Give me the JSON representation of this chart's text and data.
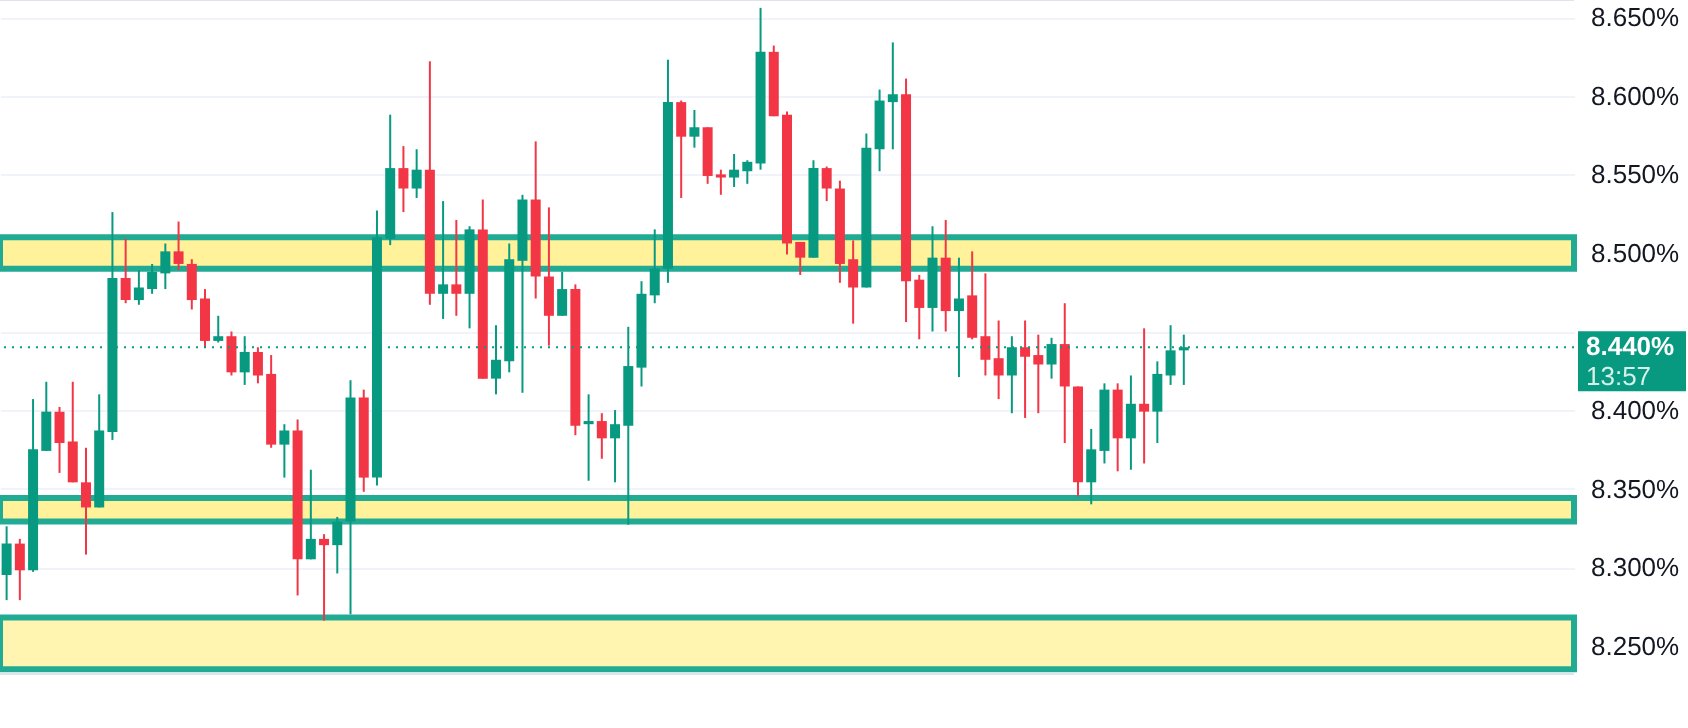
{
  "chart_data": {
    "type": "candlestick",
    "categories": [
      null,
      null,
      null,
      null,
      null,
      null,
      null,
      null,
      null,
      null,
      null,
      null,
      null,
      null,
      null,
      null,
      null,
      null,
      null,
      null,
      null,
      null,
      null,
      null,
      null,
      null,
      null,
      null,
      null,
      null,
      null,
      null,
      null,
      null,
      null,
      null,
      null,
      null,
      null,
      null,
      null,
      null,
      null,
      null,
      null,
      null,
      null,
      null,
      null,
      null,
      null,
      null,
      null,
      null,
      null,
      null,
      null,
      null,
      null,
      null,
      null,
      null,
      null,
      null,
      null,
      null,
      null,
      null,
      null,
      null,
      null,
      null,
      null,
      null,
      null,
      null,
      null,
      null,
      null,
      null,
      null,
      null,
      null,
      null,
      null,
      null,
      null,
      null,
      null,
      null,
      null,
      null,
      null,
      null,
      null,
      null,
      null,
      null,
      null,
      null,
      null,
      null,
      null,
      null,
      null,
      null,
      null,
      null,
      null,
      null,
      null,
      null,
      null,
      null,
      null,
      null,
      null,
      null,
      null
    ],
    "ohlc": [
      [
        8.295,
        8.326,
        8.279,
        8.315
      ],
      [
        8.315,
        8.318,
        8.279,
        8.298
      ],
      [
        8.298,
        8.407,
        8.297,
        8.375
      ],
      [
        8.374,
        8.418,
        8.374,
        8.399
      ],
      [
        8.399,
        8.402,
        8.36,
        8.379
      ],
      [
        8.38,
        8.418,
        8.354,
        8.354
      ],
      [
        8.354,
        8.376,
        8.308,
        8.338
      ],
      [
        8.338,
        8.41,
        8.338,
        8.387
      ],
      [
        8.386,
        8.526,
        8.381,
        8.484
      ],
      [
        8.484,
        8.509,
        8.468,
        8.47
      ],
      [
        8.47,
        8.489,
        8.467,
        8.478
      ],
      [
        8.477,
        8.493,
        8.474,
        8.488
      ],
      [
        8.487,
        8.506,
        8.477,
        8.501
      ],
      [
        8.501,
        8.52,
        8.489,
        8.493
      ],
      [
        8.493,
        8.496,
        8.464,
        8.47
      ],
      [
        8.471,
        8.477,
        8.44,
        8.444
      ],
      [
        8.444,
        8.46,
        8.443,
        8.447
      ],
      [
        8.447,
        8.45,
        8.422,
        8.424
      ],
      [
        8.424,
        8.447,
        8.416,
        8.437
      ],
      [
        8.437,
        8.44,
        8.417,
        8.422
      ],
      [
        8.423,
        8.435,
        8.376,
        8.378
      ],
      [
        8.378,
        8.391,
        8.357,
        8.387
      ],
      [
        8.387,
        8.394,
        8.282,
        8.305
      ],
      [
        8.305,
        8.362,
        8.305,
        8.318
      ],
      [
        8.318,
        8.321,
        8.266,
        8.314
      ],
      [
        8.314,
        8.332,
        8.296,
        8.329
      ],
      [
        8.329,
        8.419,
        8.27,
        8.408
      ],
      [
        8.408,
        8.413,
        8.348,
        8.357
      ],
      [
        8.357,
        8.527,
        8.352,
        8.51
      ],
      [
        8.509,
        8.588,
        8.505,
        8.554
      ],
      [
        8.554,
        8.568,
        8.526,
        8.541
      ],
      [
        8.541,
        8.566,
        8.535,
        8.553
      ],
      [
        8.553,
        8.622,
        8.467,
        8.474
      ],
      [
        8.474,
        8.533,
        8.458,
        8.48
      ],
      [
        8.48,
        8.521,
        8.46,
        8.474
      ],
      [
        8.474,
        8.517,
        8.452,
        8.515
      ],
      [
        8.515,
        8.534,
        8.42,
        8.42
      ],
      [
        8.42,
        8.454,
        8.41,
        8.432
      ],
      [
        8.431,
        8.506,
        8.424,
        8.496
      ],
      [
        8.495,
        8.537,
        8.411,
        8.534
      ],
      [
        8.534,
        8.571,
        8.471,
        8.485
      ],
      [
        8.485,
        8.529,
        8.441,
        8.46
      ],
      [
        8.46,
        8.488,
        8.46,
        8.477
      ],
      [
        8.477,
        8.48,
        8.384,
        8.39
      ],
      [
        8.391,
        8.41,
        8.355,
        8.393
      ],
      [
        8.393,
        8.398,
        8.369,
        8.382
      ],
      [
        8.382,
        8.4,
        8.354,
        8.391
      ],
      [
        8.39,
        8.453,
        8.327,
        8.428
      ],
      [
        8.427,
        8.482,
        8.415,
        8.474
      ],
      [
        8.473,
        8.515,
        8.468,
        8.49
      ],
      [
        8.49,
        8.623,
        8.481,
        8.596
      ],
      [
        8.596,
        8.597,
        8.535,
        8.574
      ],
      [
        8.574,
        8.591,
        8.567,
        8.58
      ],
      [
        8.58,
        8.58,
        8.544,
        8.549
      ],
      [
        8.55,
        8.553,
        8.537,
        8.548
      ],
      [
        8.548,
        8.563,
        8.542,
        8.553
      ],
      [
        8.552,
        8.559,
        8.544,
        8.558
      ],
      [
        8.557,
        8.656,
        8.553,
        8.628
      ],
      [
        8.628,
        8.632,
        8.587,
        8.587
      ],
      [
        8.588,
        8.59,
        8.499,
        8.506
      ],
      [
        8.507,
        8.507,
        8.486,
        8.497
      ],
      [
        8.497,
        8.559,
        8.497,
        8.554
      ],
      [
        8.554,
        8.555,
        8.533,
        8.541
      ],
      [
        8.541,
        8.546,
        8.481,
        8.493
      ],
      [
        8.496,
        8.508,
        8.455,
        8.478
      ],
      [
        8.478,
        8.576,
        8.478,
        8.567
      ],
      [
        8.566,
        8.604,
        8.552,
        8.597
      ],
      [
        8.596,
        8.634,
        8.566,
        8.601
      ],
      [
        8.601,
        8.611,
        8.456,
        8.482
      ],
      [
        8.483,
        8.486,
        8.445,
        8.465
      ],
      [
        8.465,
        8.517,
        8.45,
        8.497
      ],
      [
        8.497,
        8.521,
        8.45,
        8.463
      ],
      [
        8.463,
        8.497,
        8.421,
        8.471
      ],
      [
        8.473,
        8.501,
        8.445,
        8.446
      ],
      [
        8.447,
        8.487,
        8.422,
        8.432
      ],
      [
        8.433,
        8.457,
        8.407,
        8.422
      ],
      [
        8.422,
        8.447,
        8.398,
        8.44
      ],
      [
        8.44,
        8.457,
        8.395,
        8.434
      ],
      [
        8.435,
        8.448,
        8.398,
        8.429
      ],
      [
        8.429,
        8.446,
        8.42,
        8.442
      ],
      [
        8.442,
        8.468,
        8.379,
        8.415
      ],
      [
        8.415,
        8.415,
        8.345,
        8.354
      ],
      [
        8.354,
        8.388,
        8.34,
        8.375
      ],
      [
        8.374,
        8.417,
        8.366,
        8.413
      ],
      [
        8.413,
        8.417,
        8.361,
        8.382
      ],
      [
        8.382,
        8.422,
        8.362,
        8.404
      ],
      [
        8.404,
        8.452,
        8.366,
        8.399
      ],
      [
        8.399,
        8.431,
        8.379,
        8.423
      ],
      [
        8.422,
        8.454,
        8.416,
        8.438
      ],
      [
        8.438,
        8.448,
        8.416,
        8.44
      ],
      null,
      null,
      null,
      null,
      null,
      null,
      null,
      null,
      null,
      null,
      null,
      null,
      null,
      null,
      null,
      null,
      null,
      null,
      null,
      null,
      null,
      null,
      null,
      null,
      null,
      null,
      null,
      null,
      null
    ],
    "ylim": [
      8.232,
      8.661
    ],
    "yticks": [
      {
        "value": 8.25,
        "label": "8.250%"
      },
      {
        "value": 8.3,
        "label": "8.300%"
      },
      {
        "value": 8.35,
        "label": "8.350%"
      },
      {
        "value": 8.4,
        "label": "8.400%"
      },
      {
        "value": 8.45,
        "label": null
      },
      {
        "value": 8.5,
        "label": "8.500%"
      },
      {
        "value": 8.55,
        "label": "8.550%"
      },
      {
        "value": 8.6,
        "label": "8.600%"
      },
      {
        "value": 8.65,
        "label": "8.650%"
      }
    ],
    "bands": [
      {
        "axis": "y",
        "from": 8.49,
        "to": 8.51,
        "color": "#fff29a"
      },
      {
        "axis": "y",
        "from": 8.329,
        "to": 8.344,
        "color": "#fff29a"
      },
      {
        "axis": "y",
        "from": 8.235,
        "to": 8.268,
        "color": "#fff5b0"
      }
    ],
    "ref_lines": [
      {
        "axis": "y",
        "value": 8.44,
        "label": "8.440%",
        "color": "#089981",
        "line_style": "dotted"
      }
    ],
    "annotations": [
      "13:57"
    ],
    "grid": "y",
    "tick_labels": "y"
  }
}
